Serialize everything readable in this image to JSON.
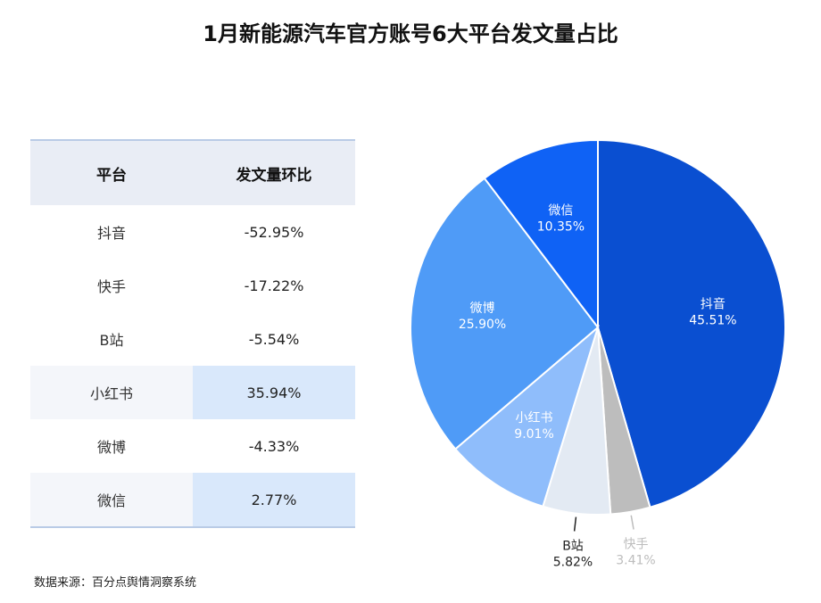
{
  "title": "1月新能源汽车官方账号6大平台发文量占比",
  "table": {
    "headers": [
      "平台",
      "发文量环比"
    ],
    "rows": [
      {
        "platform": "抖音",
        "change": "-52.95%",
        "highlight": false
      },
      {
        "platform": "快手",
        "change": "-17.22%",
        "highlight": false
      },
      {
        "platform": "B站",
        "change": "-5.54%",
        "highlight": false
      },
      {
        "platform": "小红书",
        "change": "35.94%",
        "highlight": true
      },
      {
        "platform": "微博",
        "change": "-4.33%",
        "highlight": false
      },
      {
        "platform": "微信",
        "change": "2.77%",
        "highlight": true
      }
    ]
  },
  "source": "数据来源：百分点舆情洞察系统",
  "chart_data": {
    "type": "pie",
    "slices": [
      {
        "name": "抖音",
        "value": 45.51,
        "label": "45.51%",
        "color": "#0a4fd1",
        "label_color": "#ffffff",
        "label_placement": "inside"
      },
      {
        "name": "快手",
        "value": 3.41,
        "label": "3.41%",
        "color": "#bdbdbd",
        "label_color": "#bdbdbd",
        "label_placement": "outside"
      },
      {
        "name": "B站",
        "value": 5.82,
        "label": "5.82%",
        "color": "#e3eaf3",
        "label_color": "#222222",
        "label_placement": "outside"
      },
      {
        "name": "小红书",
        "value": 9.01,
        "label": "9.01%",
        "color": "#8fbdfb",
        "label_color": "#ffffff",
        "label_placement": "inside"
      },
      {
        "name": "微博",
        "value": 25.9,
        "label": "25.90%",
        "color": "#4f9bf7",
        "label_color": "#ffffff",
        "label_placement": "inside"
      },
      {
        "name": "微信",
        "value": 10.35,
        "label": "10.35%",
        "color": "#0f62f5",
        "label_color": "#ffffff",
        "label_placement": "inside"
      }
    ],
    "start": "12 o'clock",
    "direction": "clockwise"
  }
}
